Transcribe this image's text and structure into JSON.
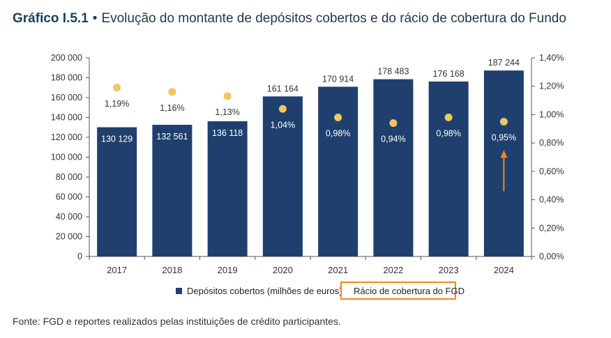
{
  "title": {
    "number": "Gráfico I.5.1",
    "separator": "•",
    "text": "Evolução do montante de depósitos cobertos e do rácio de cobertura do Fundo"
  },
  "legend": {
    "bars_label": "Depósitos cobertos (milhões de euros)",
    "dots_label": "Rácio de cobertura do FGD"
  },
  "source": "Fonte: FGD e reportes realizados pelas instituições de crédito participantes.",
  "colors": {
    "bar": "#1f3f6e",
    "dot": "#f0c75e",
    "highlight": "#f0891e",
    "axis": "#555555",
    "title": "#1a3d5c"
  },
  "chart_data": {
    "type": "bar",
    "categories": [
      "2017",
      "2018",
      "2019",
      "2020",
      "2021",
      "2022",
      "2023",
      "2024"
    ],
    "series": [
      {
        "name": "Depósitos cobertos (milhões de euros)",
        "type": "bar",
        "axis": "left",
        "values": [
          130129,
          132561,
          136118,
          161164,
          170914,
          178483,
          176168,
          187244
        ],
        "labels": [
          "130 129",
          "132 561",
          "136 118",
          "161 164",
          "170 914",
          "178 483",
          "176 168",
          "187 244"
        ]
      },
      {
        "name": "Rácio de cobertura do FGD",
        "type": "scatter",
        "axis": "right",
        "values": [
          1.19,
          1.16,
          1.13,
          1.04,
          0.98,
          0.94,
          0.98,
          0.95
        ],
        "labels": [
          "1,19%",
          "1,16%",
          "1,13%",
          "1,04%",
          "0,98%",
          "0,94%",
          "0,98%",
          "0,95%"
        ]
      }
    ],
    "y_left": {
      "min": 0,
      "max": 200000,
      "ticks": [
        0,
        20000,
        40000,
        60000,
        80000,
        100000,
        120000,
        140000,
        160000,
        180000,
        200000
      ],
      "tick_labels": [
        "0",
        "20 000",
        "40 000",
        "60 000",
        "80 000",
        "100 000",
        "120 000",
        "140 000",
        "160 000",
        "180 000",
        "200 000"
      ]
    },
    "y_right": {
      "min": 0,
      "max": 1.4,
      "ticks": [
        0,
        0.2,
        0.4,
        0.6,
        0.8,
        1.0,
        1.2,
        1.4
      ],
      "tick_labels": [
        "0,00%",
        "0,20%",
        "0,40%",
        "0,60%",
        "0,80%",
        "1,00%",
        "1,20%",
        "1,40%"
      ]
    },
    "annotations": [
      {
        "type": "arrow",
        "category": "2024",
        "axis": "right",
        "from": 0.46,
        "to": 0.74,
        "color": "#f0891e"
      }
    ],
    "legend_position": "bottom",
    "grid": false
  }
}
